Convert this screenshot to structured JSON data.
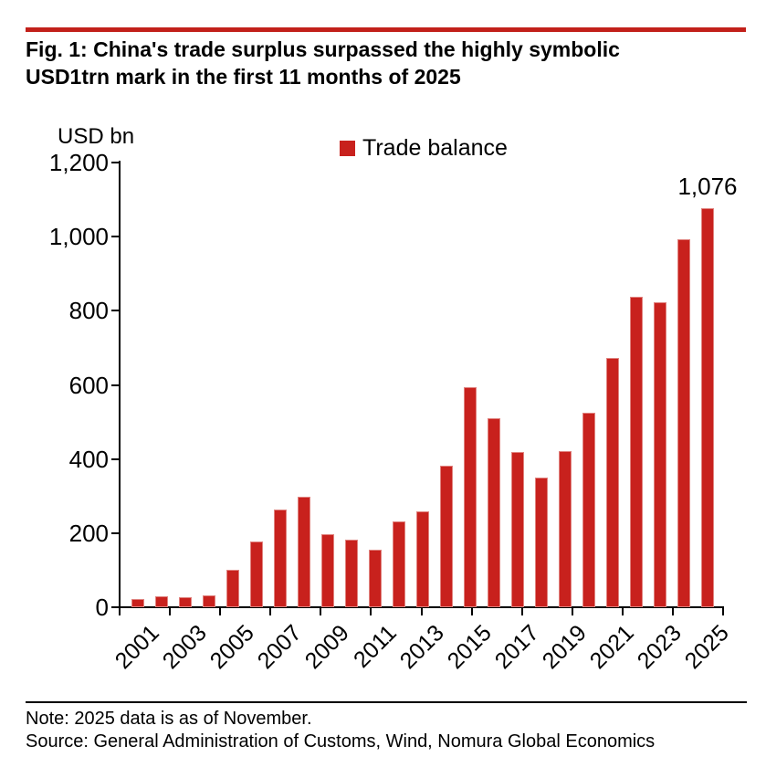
{
  "header": {
    "title_lines": [
      "Fig. 1: China's trade surplus surpassed the highly symbolic",
      "USD1trn mark in the first 11 months of 2025"
    ]
  },
  "chart_data": {
    "type": "bar",
    "title": "Fig. 1: China's trade surplus surpassed the highly symbolic USD1trn mark in the first 11 months of 2025",
    "unit_label": "USD bn",
    "legend": [
      {
        "label": "Trade balance",
        "color": "#c8211d"
      }
    ],
    "legend_position": "top-center",
    "grid": false,
    "categories": [
      "2001",
      "2002",
      "2003",
      "2004",
      "2005",
      "2006",
      "2007",
      "2008",
      "2009",
      "2010",
      "2011",
      "2012",
      "2013",
      "2014",
      "2015",
      "2016",
      "2017",
      "2018",
      "2019",
      "2020",
      "2021",
      "2022",
      "2023",
      "2024",
      "2025"
    ],
    "values": [
      23,
      30,
      26,
      32,
      102,
      178,
      264,
      298,
      196,
      182,
      155,
      231,
      259,
      383,
      594,
      510,
      420,
      351,
      421,
      524,
      672,
      838,
      823,
      992,
      1076
    ],
    "xlabel": "",
    "ylabel": "USD bn",
    "ylim": [
      0,
      1200
    ],
    "ytick_step": 200,
    "ytick_labels": [
      "0",
      "200",
      "400",
      "600",
      "800",
      "1,000",
      "1,200"
    ],
    "xtick_label_interval": 2,
    "annotation": {
      "category": "2025",
      "text": "1,076"
    },
    "bar_color": "#c8211d",
    "bar_edge_color": "#e0837f"
  },
  "footer": {
    "note": "Note: 2025 data is as of November.",
    "source": "Source: General Administration of Customs, Wind, Nomura Global Economics"
  },
  "colors": {
    "accent_red": "#c2201a",
    "bar_red": "#c8211d",
    "text": "#000000"
  }
}
